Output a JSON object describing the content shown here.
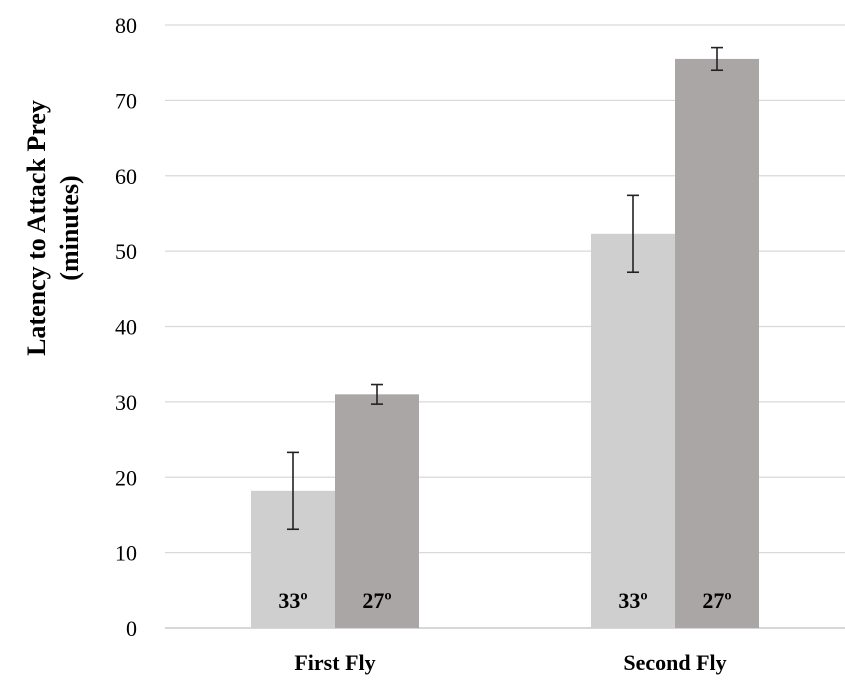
{
  "chart_data": {
    "type": "bar",
    "ylabel_line1": "Latency to Attack Prey",
    "ylabel_line2": "(minutes)",
    "categories": [
      "First Fly",
      "Second Fly"
    ],
    "ylim": [
      0,
      80
    ],
    "yticks": [
      0,
      10,
      20,
      30,
      40,
      50,
      60,
      70,
      80
    ],
    "grid": true,
    "series": [
      {
        "bar_label": "33º",
        "color": "#d0cfd0",
        "values": [
          18.2,
          52.3
        ],
        "errors": [
          5.1,
          5.1
        ]
      },
      {
        "bar_label": "27º",
        "color": "#aaa6a6",
        "values": [
          31.0,
          75.5
        ],
        "errors": [
          1.3,
          1.5
        ]
      }
    ]
  }
}
